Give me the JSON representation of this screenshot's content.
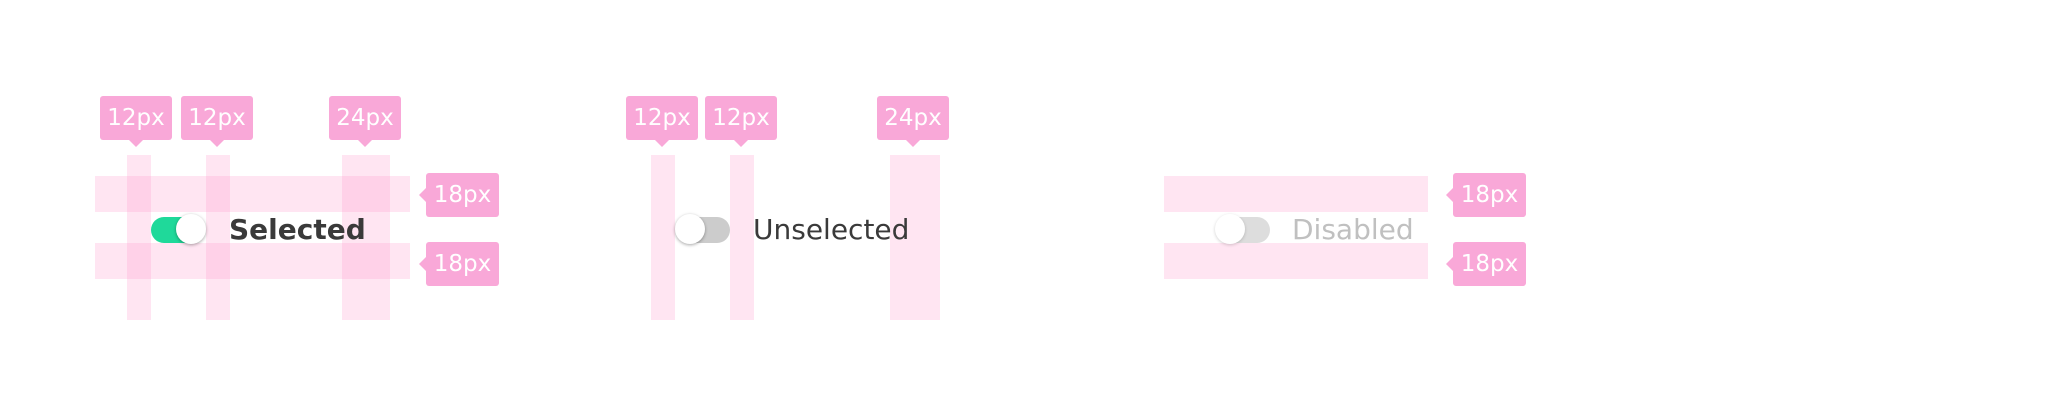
{
  "spacing": {
    "horizontal_gap": "12px",
    "label_gap": "24px",
    "vertical_gap": "18px"
  },
  "colors": {
    "guide_band": "#ffd6ec",
    "tag_background": "#f9a8d8",
    "switch_on": "#1fd99a",
    "switch_off": "#cccccc",
    "switch_disabled": "#dddddd",
    "label_selected": "#3a3a3a",
    "label_unselected": "#3a3a3a",
    "label_disabled": "#c0c0c0"
  },
  "examples": {
    "selected": {
      "label": "Selected",
      "state": "on"
    },
    "unselected": {
      "label": "Unselected",
      "state": "off"
    },
    "disabled": {
      "label": "Disabled",
      "state": "disabled"
    }
  }
}
